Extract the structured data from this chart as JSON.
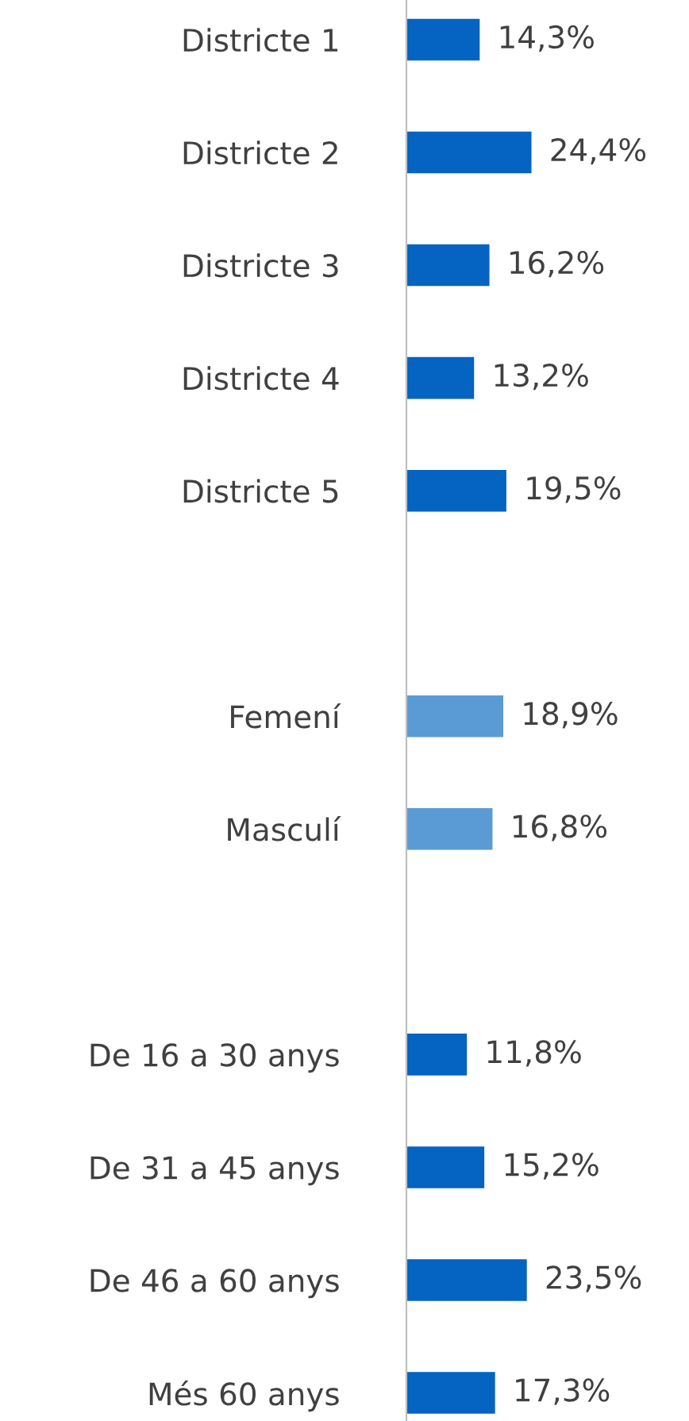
{
  "chart_data": {
    "type": "bar",
    "orientation": "horizontal",
    "categories": [
      "Districte 1",
      "Districte 2",
      "Districte 3",
      "Districte 4",
      "Districte 5",
      null,
      "Femení",
      "Masculí",
      null,
      "De 16 a 30 anys",
      "De 31 a 45 anys",
      "De 46 a 60 anys",
      "Més 60 anys"
    ],
    "values": [
      14.3,
      24.4,
      16.2,
      13.2,
      19.5,
      null,
      18.9,
      16.8,
      null,
      11.8,
      15.2,
      23.5,
      17.3
    ],
    "value_labels": [
      "14,3%",
      "24,4%",
      "16,2%",
      "13,2%",
      "19,5%",
      null,
      "18,9%",
      "16,8%",
      null,
      "11,8%",
      "15,2%",
      "23,5%",
      "17,3%"
    ],
    "colors": [
      "#0563c1",
      "#0563c1",
      "#0563c1",
      "#0563c1",
      "#0563c1",
      null,
      "#5b9bd5",
      "#5b9bd5",
      null,
      "#0563c1",
      "#0563c1",
      "#0563c1",
      "#0563c1"
    ],
    "grid": false,
    "legend": false
  }
}
